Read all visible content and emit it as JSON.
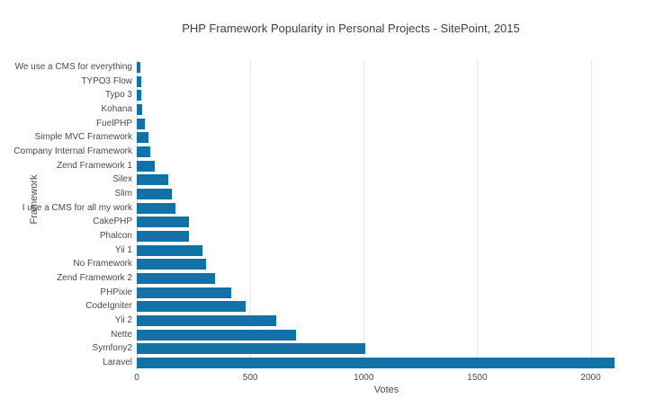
{
  "chart_data": {
    "type": "bar",
    "orientation": "horizontal",
    "title": "PHP Framework Popularity in Personal Projects - SitePoint, 2015",
    "xlabel": "Votes",
    "ylabel": "Framework",
    "xlim": [
      0,
      2200
    ],
    "x_ticks": [
      0,
      500,
      1000,
      1500,
      2000
    ],
    "grid": true,
    "legend": "none",
    "categories_top_to_bottom": [
      "We use a CMS for everything",
      "TYPO3 Flow",
      "Typo 3",
      "Kohana",
      "FuelPHP",
      "Simple MVC Framework",
      "Company Internal Framework",
      "Zend Framework 1",
      "Silex",
      "Slim",
      "I use a CMS for all my work",
      "CakePHP",
      "Phalcon",
      "Yii 1",
      "No Framework",
      "Zend Framework 2",
      "PHPixie",
      "CodeIgniter",
      "Yii 2",
      "Nette",
      "Symfony2",
      "Laravel"
    ],
    "values": [
      15,
      18,
      21,
      24,
      35,
      53,
      61,
      79,
      140,
      156,
      172,
      228,
      230,
      288,
      304,
      344,
      417,
      478,
      616,
      700,
      1005,
      2106
    ],
    "colors": {
      "bar": "#1272A8",
      "grid": "#E9E9E9",
      "zero_line": "#D0D0D0",
      "tick_text": "#4A4A4A",
      "title_text": "#3F3F3F",
      "background": "#FFFFFF"
    }
  }
}
